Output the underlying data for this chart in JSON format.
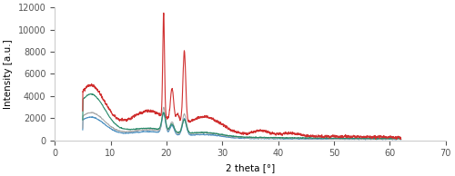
{
  "xlim": [
    0,
    70
  ],
  "ylim": [
    0,
    12000
  ],
  "xlabel": "2 theta [°]",
  "ylabel": "Intensity [a.u.]",
  "xticks": [
    0,
    10,
    20,
    30,
    40,
    50,
    60,
    70
  ],
  "yticks": [
    0,
    2000,
    4000,
    6000,
    8000,
    10000,
    12000
  ],
  "colors": {
    "lipid": "#d03030",
    "empty_sln": "#aaaaaa",
    "sln_compound1": "#4a8fc0",
    "sln_compound2": "#2a8a6a"
  },
  "linewidth": 0.8,
  "background": "#ffffff",
  "figsize": [
    5.0,
    1.94
  ],
  "dpi": 100
}
